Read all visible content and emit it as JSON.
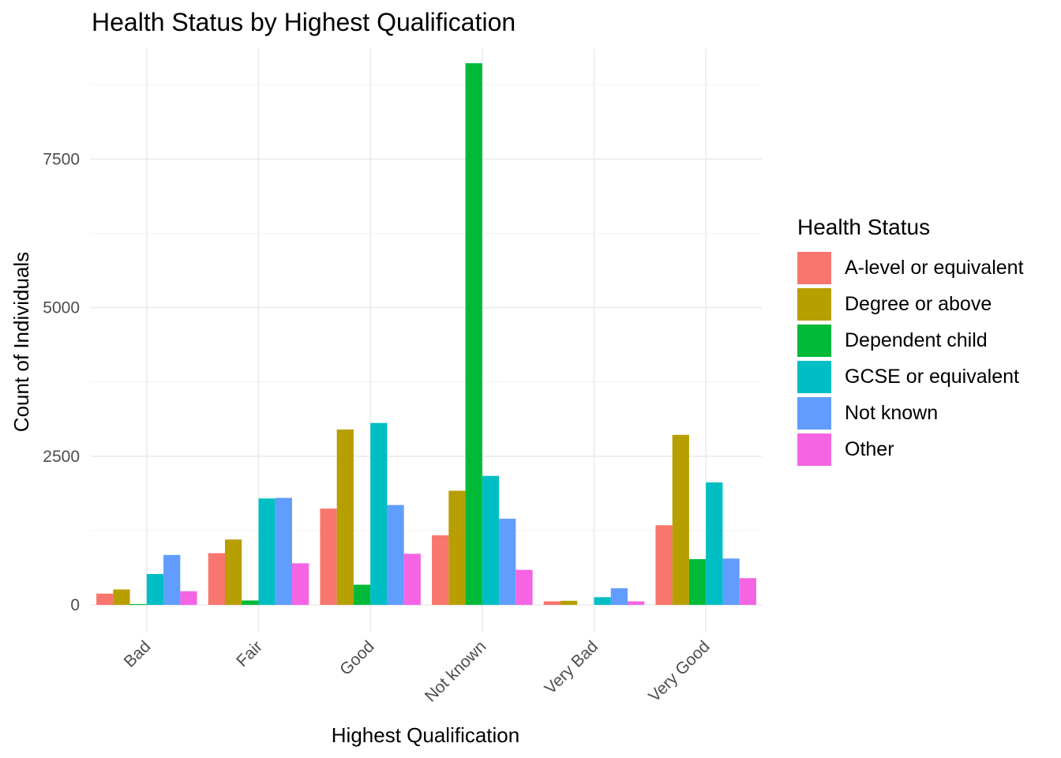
{
  "chart_data": {
    "type": "bar",
    "title": "Health Status by Highest Qualification",
    "xlabel": "Highest Qualification",
    "ylabel": "Count of Individuals",
    "legend_title": "Health Status",
    "legend_position": "right",
    "grid": true,
    "ylim": [
      -450,
      9350
    ],
    "yticks": [
      0,
      2500,
      5000,
      7500
    ],
    "categories": [
      "Bad",
      "Fair",
      "Good",
      "Not known",
      "Very Bad",
      "Very Good"
    ],
    "series": [
      {
        "name": "A-level or equivalent",
        "color": "#F8766D",
        "values": [
          190,
          870,
          1620,
          1170,
          60,
          1340
        ]
      },
      {
        "name": "Degree or above",
        "color": "#B79F00",
        "values": [
          260,
          1100,
          2950,
          1920,
          70,
          2860
        ]
      },
      {
        "name": "Dependent child",
        "color": "#00BA38",
        "values": [
          15,
          75,
          340,
          9110,
          0,
          770
        ]
      },
      {
        "name": "GCSE or equivalent",
        "color": "#00BFC4",
        "values": [
          520,
          1790,
          3060,
          2170,
          130,
          2060
        ]
      },
      {
        "name": "Not known",
        "color": "#619CFF",
        "values": [
          840,
          1800,
          1680,
          1450,
          280,
          780
        ]
      },
      {
        "name": "Other",
        "color": "#F564E3",
        "values": [
          230,
          700,
          860,
          590,
          60,
          450
        ]
      }
    ]
  }
}
